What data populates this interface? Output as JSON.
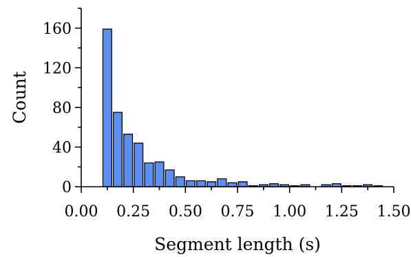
{
  "chart_data": {
    "type": "bar",
    "title": "",
    "xlabel": "Segment length (s)",
    "ylabel": "Count",
    "xlim": [
      0.0,
      1.5
    ],
    "ylim": [
      0,
      180
    ],
    "grid": false,
    "bar_color": "#5b8ff0",
    "edge_color": "#000000",
    "x_ticks": [
      "0.00",
      "0.25",
      "0.50",
      "0.75",
      "1.00",
      "1.25",
      "1.50"
    ],
    "y_ticks": [
      "0",
      "40",
      "80",
      "120",
      "160"
    ],
    "bin_width": 0.05,
    "series": [
      {
        "x": [
          0.125,
          0.175,
          0.225,
          0.275,
          0.325,
          0.375,
          0.425,
          0.475,
          0.525,
          0.575,
          0.625,
          0.675,
          0.725,
          0.775,
          0.825,
          0.875,
          0.925,
          0.975,
          1.025,
          1.075,
          1.125,
          1.175,
          1.225,
          1.275,
          1.325,
          1.375,
          1.425
        ],
        "values": [
          159,
          75,
          53,
          44,
          24,
          25,
          17,
          10,
          6,
          6,
          5,
          8,
          4,
          5,
          1,
          2,
          3,
          2,
          1,
          2,
          0,
          2,
          3,
          1,
          1,
          2,
          1
        ]
      }
    ]
  }
}
